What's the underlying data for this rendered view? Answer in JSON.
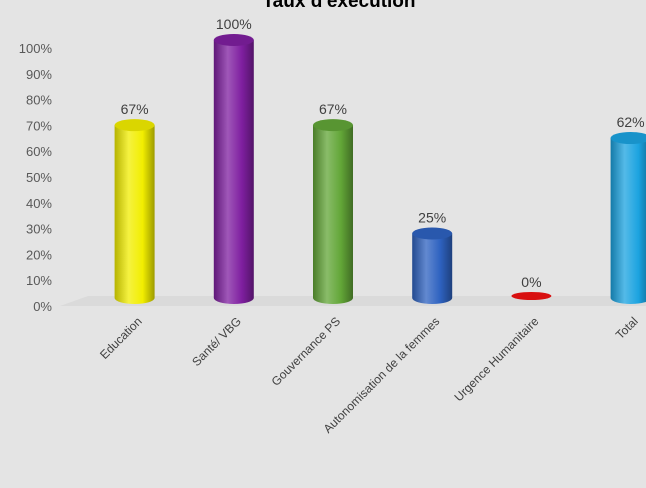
{
  "chart_data": {
    "type": "bar",
    "title": "Taux d'exécution",
    "categories": [
      "Education",
      "Santé/ VBG",
      "Gouvernance PS",
      "Autonomisation de la femmes",
      "Urgence Humanitaire",
      "Total"
    ],
    "values": [
      67,
      100,
      67,
      25,
      0,
      62
    ],
    "data_labels": [
      "67%",
      "100%",
      "67%",
      "25%",
      "0%",
      "62%"
    ],
    "colors": [
      "#f2ee00",
      "#7f1fa0",
      "#62a637",
      "#2e62c0",
      "#d81010",
      "#1ba3e0"
    ],
    "ylim": [
      0,
      100
    ],
    "yticks": [
      "0%",
      "10%",
      "20%",
      "30%",
      "40%",
      "50%",
      "60%",
      "70%",
      "80%",
      "90%",
      "100%"
    ],
    "grid": false,
    "legend": "none",
    "style": "3d-cylinder"
  }
}
